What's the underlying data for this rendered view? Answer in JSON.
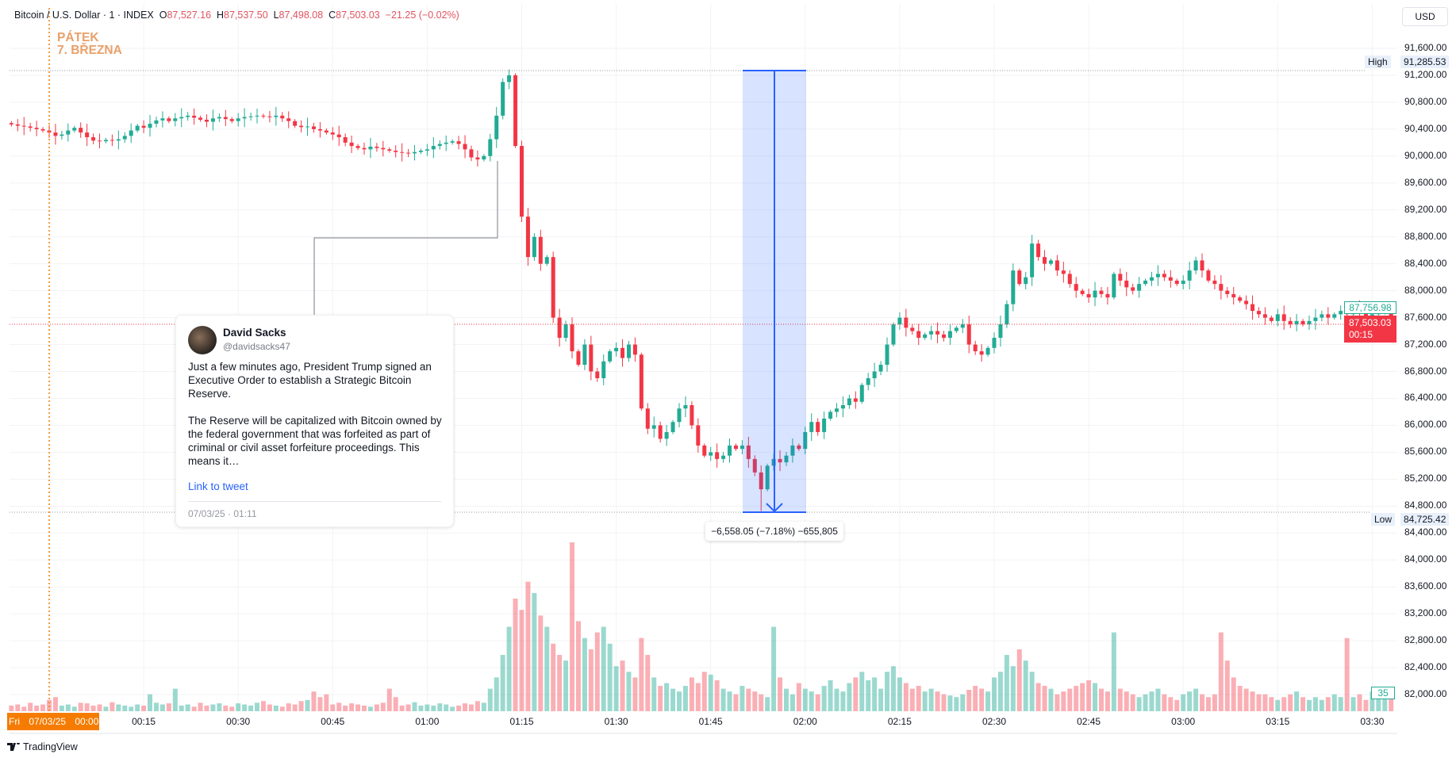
{
  "legend": {
    "symbol": "Bitcoin / U.S. Dollar · 1 · INDEX",
    "open_label": "O",
    "open": "87,527.16",
    "high_label": "H",
    "high": "87,537.50",
    "low_label": "L",
    "low": "87,498.08",
    "close_label": "C",
    "close": "87,503.03",
    "change": "−21.25 (−0.02%)"
  },
  "day_label": {
    "line1": "PÁTEK",
    "line2": "7. BŘEZNA"
  },
  "currency_button": "USD",
  "colors": {
    "up": "#22ab94",
    "down": "#f23645",
    "measure": "#2962ff",
    "day_marker": "#f57c00"
  },
  "price_axis": [
    "91,600.00",
    "91,200.00",
    "90,800.00",
    "90,400.00",
    "90,000.00",
    "89,600.00",
    "89,200.00",
    "88,800.00",
    "88,400.00",
    "88,000.00",
    "87,600.00",
    "87,200.00",
    "86,800.00",
    "86,400.00",
    "86,000.00",
    "85,600.00",
    "85,200.00",
    "84,800.00",
    "84,400.00",
    "84,000.00",
    "83,600.00",
    "83,200.00",
    "82,800.00",
    "82,400.00",
    "82,000.00"
  ],
  "high_marker": {
    "label": "High",
    "value": "91,285.53"
  },
  "low_marker": {
    "label": "Low",
    "value": "84,725.42"
  },
  "current_price": {
    "value": "87,503.03",
    "countdown": "00:15"
  },
  "indicator_price": "87,756.98",
  "volume_last": "35",
  "time_axis": {
    "first": "Fri 07/03/25  00:00",
    "labels": [
      "00:15",
      "00:30",
      "00:45",
      "01:00",
      "01:15",
      "01:30",
      "01:45",
      "02:00",
      "02:15",
      "02:30",
      "02:45",
      "03:00",
      "03:15",
      "03:30"
    ]
  },
  "measure": {
    "text": "−6,558.05 (−7.18%) −655,805"
  },
  "tweet": {
    "name": "David Sacks",
    "handle": "@davidsacks47",
    "text": "Just a few minutes ago, President Trump signed an Executive Order to establish a Strategic Bitcoin Reserve.\n\nThe Reserve will be capitalized with Bitcoin owned by the federal government that was forfeited as part of criminal or civil asset forfeiture proceedings. This means it…",
    "link": "Link to tweet",
    "date": "07/03/25 · 01:11"
  },
  "branding": "TradingView",
  "chart_data": {
    "type": "candlestick",
    "interval_minutes": 1,
    "first_bar_time": "06/03/25 23:54",
    "ylim": [
      82000,
      91800
    ],
    "grid": true,
    "high": 91285.53,
    "high_time": "01:13",
    "low": 84725.42,
    "low_time": "01:53",
    "close": [
      90470,
      90450,
      90440,
      90420,
      90400,
      90380,
      90350,
      90300,
      90320,
      90380,
      90420,
      90350,
      90280,
      90230,
      90220,
      90240,
      90230,
      90250,
      90300,
      90380,
      90450,
      90420,
      90480,
      90530,
      90560,
      90520,
      90560,
      90580,
      90600,
      90570,
      90540,
      90510,
      90560,
      90580,
      90550,
      90520,
      90560,
      90580,
      90590,
      90600,
      90590,
      90580,
      90600,
      90560,
      90520,
      90450,
      90430,
      90440,
      90400,
      90380,
      90350,
      90320,
      90280,
      90200,
      90150,
      90120,
      90100,
      90140,
      90120,
      90100,
      90080,
      90060,
      90050,
      90040,
      90060,
      90080,
      90100,
      90150,
      90180,
      90200,
      90220,
      90180,
      90100,
      89980,
      89950,
      90000,
      90250,
      90600,
      91100,
      91200,
      90150,
      89100,
      88500,
      88800,
      88400,
      88500,
      87600,
      87300,
      87500,
      87100,
      86900,
      87200,
      86800,
      86700,
      86950,
      87100,
      87150,
      87000,
      87200,
      87050,
      86250,
      85950,
      86000,
      85800,
      85900,
      86050,
      86250,
      86300,
      86000,
      85700,
      85550,
      85600,
      85500,
      85550,
      85700,
      85650,
      85700,
      85500,
      85300,
      85050,
      85400,
      85500,
      85450,
      85550,
      85700,
      85650,
      85900,
      86050,
      85900,
      86100,
      86200,
      86250,
      86300,
      86400,
      86350,
      86600,
      86700,
      86800,
      86900,
      87200,
      87500,
      87600,
      87450,
      87400,
      87300,
      87350,
      87400,
      87350,
      87300,
      87400,
      87450,
      87500,
      87200,
      87100,
      87050,
      87150,
      87300,
      87500,
      87800,
      88300,
      88100,
      88200,
      88700,
      88500,
      88400,
      88450,
      88300,
      88250,
      88100,
      88000,
      87950,
      87900,
      88000,
      87950,
      87900,
      88250,
      88150,
      88050,
      88000,
      88100,
      88150,
      88200,
      88250,
      88200,
      88150,
      88100,
      88150,
      88300,
      88450,
      88300,
      88150,
      88100,
      88000,
      87950,
      87900,
      87850,
      87800,
      87700,
      87650,
      87600,
      87550,
      87650,
      87550,
      87500,
      87550,
      87500,
      87550,
      87600,
      87650,
      87600,
      87650,
      87700,
      87650,
      87750,
      87700,
      87600,
      87650,
      87700,
      87720,
      87503.03
    ],
    "volume": [
      10,
      12,
      8,
      15,
      10,
      12,
      20,
      25,
      10,
      12,
      8,
      15,
      14,
      10,
      12,
      8,
      16,
      12,
      10,
      8,
      12,
      10,
      30,
      15,
      12,
      14,
      40,
      10,
      12,
      8,
      15,
      10,
      12,
      14,
      10,
      8,
      14,
      12,
      10,
      15,
      18,
      12,
      10,
      8,
      14,
      12,
      18,
      20,
      35,
      25,
      30,
      12,
      15,
      10,
      14,
      12,
      10,
      8,
      12,
      15,
      40,
      25,
      10,
      12,
      16,
      10,
      12,
      10,
      14,
      12,
      8,
      10,
      14,
      12,
      18,
      15,
      40,
      60,
      100,
      150,
      200,
      180,
      230,
      210,
      170,
      150,
      120,
      100,
      90,
      300,
      160,
      130,
      110,
      140,
      150,
      120,
      80,
      90,
      70,
      60,
      130,
      100,
      60,
      45,
      50,
      40,
      35,
      45,
      60,
      50,
      70,
      65,
      55,
      40,
      35,
      30,
      45,
      40,
      35,
      30,
      25,
      150,
      60,
      40,
      30,
      50,
      40,
      35,
      30,
      45,
      55,
      40,
      35,
      50,
      60,
      70,
      55,
      60,
      40,
      70,
      80,
      60,
      50,
      40,
      45,
      35,
      40,
      35,
      30,
      28,
      25,
      30,
      38,
      45,
      40,
      35,
      60,
      70,
      100,
      80,
      110,
      90,
      70,
      50,
      45,
      40,
      30,
      35,
      40,
      45,
      50,
      55,
      50,
      40,
      35,
      140,
      40,
      35,
      30,
      25,
      30,
      35,
      40,
      30,
      25,
      20,
      30,
      35,
      40,
      30,
      25,
      30,
      140,
      90,
      60,
      45,
      40,
      35,
      30,
      30,
      25,
      20,
      25,
      30,
      35,
      25,
      20,
      25,
      20,
      25,
      30,
      25,
      130,
      25,
      30,
      20,
      35,
      25,
      30,
      35
    ]
  }
}
